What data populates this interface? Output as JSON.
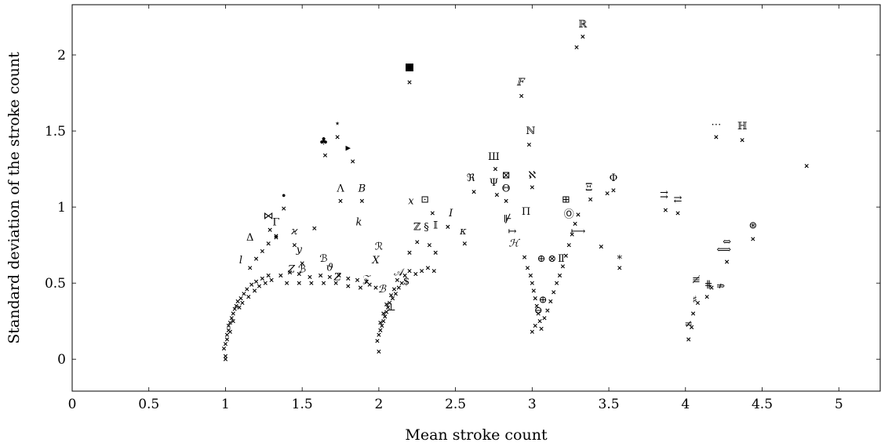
{
  "chart_data": {
    "type": "scatter",
    "xlabel": "Mean stroke count",
    "ylabel": "Standard deviation of the stroke count",
    "xlim": [
      0,
      5.27
    ],
    "ylim": [
      -0.21,
      2.33
    ],
    "xticks": [
      0,
      0.5,
      1,
      1.5,
      2,
      2.5,
      3,
      3.5,
      4,
      4.5,
      5
    ],
    "xtick_labels": [
      "0",
      "0.5",
      "1",
      "1.5",
      "2",
      "2.5",
      "3",
      "3.5",
      "4",
      "4.5",
      "5"
    ],
    "yticks": [
      0,
      0.5,
      1,
      1.5,
      2
    ],
    "ytick_labels": [
      "0",
      "0.5",
      "1",
      "1.5",
      "2"
    ],
    "grid": false,
    "marker": "x",
    "points": [
      [
        1.0,
        0.0
      ],
      [
        1.0,
        0.02
      ],
      [
        0.99,
        0.07
      ],
      [
        1.0,
        0.1
      ],
      [
        1.01,
        0.13
      ],
      [
        1.01,
        0.16
      ],
      [
        1.02,
        0.19
      ],
      [
        1.02,
        0.22
      ],
      [
        1.03,
        0.24
      ],
      [
        1.04,
        0.27
      ],
      [
        1.05,
        0.3
      ],
      [
        1.06,
        0.33
      ],
      [
        1.07,
        0.35
      ],
      [
        1.08,
        0.38
      ],
      [
        1.1,
        0.4
      ],
      [
        1.12,
        0.43
      ],
      [
        1.14,
        0.46
      ],
      [
        1.17,
        0.49
      ],
      [
        1.2,
        0.51
      ],
      [
        1.24,
        0.53
      ],
      [
        1.28,
        0.55
      ],
      [
        1.03,
        0.18
      ],
      [
        1.05,
        0.25
      ],
      [
        1.09,
        0.34
      ],
      [
        1.11,
        0.37
      ],
      [
        1.15,
        0.41
      ],
      [
        1.19,
        0.45
      ],
      [
        1.22,
        0.48
      ],
      [
        1.26,
        0.5
      ],
      [
        1.3,
        0.52
      ],
      [
        1.16,
        0.6
      ],
      [
        1.2,
        0.66
      ],
      [
        1.24,
        0.71
      ],
      [
        1.28,
        0.76
      ],
      [
        1.33,
        0.8
      ],
      [
        1.38,
        0.99
      ],
      [
        1.29,
        0.85
      ],
      [
        1.33,
        0.81
      ],
      [
        1.45,
        0.75
      ],
      [
        1.5,
        0.63
      ],
      [
        1.58,
        0.86
      ],
      [
        1.36,
        0.55
      ],
      [
        1.42,
        0.57
      ],
      [
        1.48,
        0.56
      ],
      [
        1.55,
        0.54
      ],
      [
        1.62,
        0.55
      ],
      [
        1.68,
        0.54
      ],
      [
        1.74,
        0.55
      ],
      [
        1.8,
        0.53
      ],
      [
        1.86,
        0.52
      ],
      [
        1.92,
        0.51
      ],
      [
        1.4,
        0.5
      ],
      [
        1.48,
        0.5
      ],
      [
        1.56,
        0.5
      ],
      [
        1.64,
        0.5
      ],
      [
        1.72,
        0.5
      ],
      [
        1.8,
        0.48
      ],
      [
        1.88,
        0.47
      ],
      [
        1.94,
        0.49
      ],
      [
        1.98,
        0.47
      ],
      [
        1.65,
        1.34
      ],
      [
        1.73,
        1.46
      ],
      [
        1.83,
        1.3
      ],
      [
        1.75,
        1.04
      ],
      [
        1.89,
        1.04
      ],
      [
        2.0,
        0.05
      ],
      [
        1.99,
        0.12
      ],
      [
        2.0,
        0.16
      ],
      [
        2.01,
        0.19
      ],
      [
        2.02,
        0.22
      ],
      [
        2.03,
        0.25
      ],
      [
        2.04,
        0.28
      ],
      [
        2.05,
        0.31
      ],
      [
        2.06,
        0.34
      ],
      [
        2.07,
        0.37
      ],
      [
        2.09,
        0.4
      ],
      [
        2.11,
        0.43
      ],
      [
        2.13,
        0.47
      ],
      [
        2.15,
        0.5
      ],
      [
        2.01,
        0.24
      ],
      [
        2.03,
        0.3
      ],
      [
        2.05,
        0.36
      ],
      [
        2.08,
        0.42
      ],
      [
        2.1,
        0.46
      ],
      [
        2.12,
        0.52
      ],
      [
        2.17,
        0.55
      ],
      [
        2.2,
        0.58
      ],
      [
        2.24,
        0.56
      ],
      [
        2.28,
        0.58
      ],
      [
        2.32,
        0.6
      ],
      [
        2.36,
        0.58
      ],
      [
        2.2,
        0.7
      ],
      [
        2.25,
        0.77
      ],
      [
        2.33,
        0.75
      ],
      [
        2.37,
        0.7
      ],
      [
        2.2,
        1.82
      ],
      [
        2.35,
        0.96
      ],
      [
        2.45,
        0.87
      ],
      [
        2.56,
        0.76
      ],
      [
        2.62,
        1.1
      ],
      [
        2.76,
        1.25
      ],
      [
        2.77,
        1.08
      ],
      [
        2.83,
        1.04
      ],
      [
        2.93,
        1.73
      ],
      [
        2.98,
        1.41
      ],
      [
        3.0,
        1.13
      ],
      [
        3.29,
        2.05
      ],
      [
        3.33,
        2.12
      ],
      [
        2.95,
        0.67
      ],
      [
        2.97,
        0.6
      ],
      [
        2.99,
        0.55
      ],
      [
        3.0,
        0.5
      ],
      [
        3.01,
        0.45
      ],
      [
        3.02,
        0.4
      ],
      [
        3.03,
        0.35
      ],
      [
        3.04,
        0.3
      ],
      [
        3.05,
        0.25
      ],
      [
        3.06,
        0.2
      ],
      [
        3.0,
        0.18
      ],
      [
        3.02,
        0.22
      ],
      [
        3.08,
        0.27
      ],
      [
        3.1,
        0.32
      ],
      [
        3.12,
        0.38
      ],
      [
        3.14,
        0.44
      ],
      [
        3.16,
        0.5
      ],
      [
        3.18,
        0.55
      ],
      [
        3.2,
        0.61
      ],
      [
        3.22,
        0.68
      ],
      [
        3.24,
        0.75
      ],
      [
        3.26,
        0.82
      ],
      [
        3.28,
        0.89
      ],
      [
        3.3,
        0.95
      ],
      [
        3.38,
        1.05
      ],
      [
        3.49,
        1.09
      ],
      [
        3.53,
        1.11
      ],
      [
        3.45,
        0.74
      ],
      [
        3.57,
        0.6
      ],
      [
        3.87,
        0.98
      ],
      [
        3.95,
        0.96
      ],
      [
        4.02,
        0.13
      ],
      [
        4.04,
        0.21
      ],
      [
        4.05,
        0.3
      ],
      [
        4.08,
        0.37
      ],
      [
        4.14,
        0.41
      ],
      [
        4.17,
        0.47
      ],
      [
        4.2,
        1.46
      ],
      [
        4.37,
        1.44
      ],
      [
        4.27,
        0.64
      ],
      [
        4.44,
        0.79
      ],
      [
        4.79,
        1.27
      ]
    ],
    "symbols": [
      {
        "s": "■",
        "x": 2.2,
        "y": 1.9,
        "size": 20
      },
      {
        "s": "♣",
        "x": 1.64,
        "y": 1.41,
        "size": 16
      },
      {
        "s": "⋆",
        "x": 1.73,
        "y": 1.53,
        "size": 15
      },
      {
        "s": "▸",
        "x": 1.8,
        "y": 1.37,
        "size": 22
      },
      {
        "s": "•",
        "x": 1.38,
        "y": 1.05,
        "size": 17
      },
      {
        "s": "Λ",
        "x": 1.75,
        "y": 1.1,
        "size": 13
      },
      {
        "s": "B",
        "x": 1.89,
        "y": 1.1,
        "size": 13,
        "italic": true
      },
      {
        "s": "⋈",
        "x": 1.28,
        "y": 0.92,
        "size": 15
      },
      {
        "s": "Γ",
        "x": 1.33,
        "y": 0.88,
        "size": 13
      },
      {
        "s": "ϰ",
        "x": 1.45,
        "y": 0.82,
        "size": 13,
        "italic": true
      },
      {
        "s": "y",
        "x": 1.48,
        "y": 0.7,
        "size": 13,
        "italic": true
      },
      {
        "s": "Δ",
        "x": 1.16,
        "y": 0.78,
        "size": 12
      },
      {
        "s": "l",
        "x": 1.1,
        "y": 0.63,
        "size": 13,
        "italic": true
      },
      {
        "s": "Z",
        "x": 1.43,
        "y": 0.57,
        "size": 13,
        "italic": true
      },
      {
        "s": "ℬ",
        "x": 1.5,
        "y": 0.57,
        "size": 13
      },
      {
        "s": "ϑ",
        "x": 1.68,
        "y": 0.58,
        "size": 13,
        "italic": true
      },
      {
        "s": "ℬ",
        "x": 1.64,
        "y": 0.64,
        "size": 13
      },
      {
        "s": "Z",
        "x": 1.73,
        "y": 0.52,
        "size": 13,
        "italic": true
      },
      {
        "s": "𝒵",
        "x": 1.92,
        "y": 0.51,
        "size": 13
      },
      {
        "s": "k",
        "x": 1.87,
        "y": 0.88,
        "size": 13,
        "italic": true
      },
      {
        "s": "x",
        "x": 2.21,
        "y": 1.02,
        "size": 13,
        "italic": true
      },
      {
        "s": "⊡",
        "x": 2.3,
        "y": 1.03,
        "size": 14
      },
      {
        "s": "ℤ",
        "x": 2.25,
        "y": 0.85,
        "size": 13
      },
      {
        "s": "§",
        "x": 2.31,
        "y": 0.85,
        "size": 13
      },
      {
        "s": "𝕀",
        "x": 2.37,
        "y": 0.86,
        "size": 13
      },
      {
        "s": "I",
        "x": 2.47,
        "y": 0.94,
        "size": 13,
        "italic": true
      },
      {
        "s": "κ",
        "x": 2.55,
        "y": 0.82,
        "size": 13,
        "italic": true
      },
      {
        "s": "ℛ",
        "x": 2.0,
        "y": 0.72,
        "size": 13
      },
      {
        "s": "X",
        "x": 1.98,
        "y": 0.63,
        "size": 13,
        "italic": true
      },
      {
        "s": "𝒜",
        "x": 2.13,
        "y": 0.55,
        "size": 13
      },
      {
        "s": "$",
        "x": 2.18,
        "y": 0.49,
        "size": 13
      },
      {
        "s": "ℬ",
        "x": 2.02,
        "y": 0.44,
        "size": 13,
        "italic": true
      },
      {
        "s": "⊥",
        "x": 2.08,
        "y": 0.32,
        "size": 13
      },
      {
        "s": "ℜ",
        "x": 2.6,
        "y": 1.17,
        "size": 13
      },
      {
        "s": "Ш",
        "x": 2.75,
        "y": 1.31,
        "size": 11
      },
      {
        "s": "Ψ",
        "x": 2.75,
        "y": 1.14,
        "size": 13
      },
      {
        "s": "⊠",
        "x": 2.83,
        "y": 1.19,
        "size": 15
      },
      {
        "s": "Θ",
        "x": 2.83,
        "y": 1.1,
        "size": 13
      },
      {
        "s": "ℵ",
        "x": 3.0,
        "y": 1.19,
        "size": 13
      },
      {
        "s": "𝔽",
        "x": 2.92,
        "y": 1.8,
        "size": 13,
        "italic": true
      },
      {
        "s": "ℕ",
        "x": 2.99,
        "y": 1.48,
        "size": 12
      },
      {
        "s": "ℝ",
        "x": 3.33,
        "y": 2.18,
        "size": 11
      },
      {
        "s": "Π",
        "x": 2.96,
        "y": 0.95,
        "size": 15
      },
      {
        "s": "⊮",
        "x": 2.84,
        "y": 0.9,
        "size": 13
      },
      {
        "s": "↦",
        "x": 2.87,
        "y": 0.82,
        "size": 13
      },
      {
        "s": "ℋ",
        "x": 2.88,
        "y": 0.74,
        "size": 13,
        "italic": true
      },
      {
        "s": "⊞",
        "x": 3.22,
        "y": 1.03,
        "size": 14
      },
      {
        "s": "Ξ",
        "x": 3.37,
        "y": 1.11,
        "size": 12
      },
      {
        "s": "Φ",
        "x": 3.53,
        "y": 1.17,
        "size": 12
      },
      {
        "s": "Ⓞ",
        "x": 3.24,
        "y": 0.93,
        "size": 12
      },
      {
        "s": "⟼",
        "x": 3.3,
        "y": 0.82,
        "size": 13
      },
      {
        "s": "⊕",
        "x": 3.06,
        "y": 0.64,
        "size": 13
      },
      {
        "s": "⊗",
        "x": 3.13,
        "y": 0.64,
        "size": 13
      },
      {
        "s": "Ⅱ",
        "x": 3.19,
        "y": 0.64,
        "size": 13
      },
      {
        "s": "⊕",
        "x": 3.07,
        "y": 0.37,
        "size": 13
      },
      {
        "s": "⊖",
        "x": 3.04,
        "y": 0.3,
        "size": 13
      },
      {
        "s": "∗",
        "x": 3.57,
        "y": 0.65,
        "size": 14
      },
      {
        "s": "⇉",
        "x": 3.86,
        "y": 1.06,
        "size": 14
      },
      {
        "s": "⇄",
        "x": 3.95,
        "y": 1.03,
        "size": 14
      },
      {
        "s": "ℍ",
        "x": 4.37,
        "y": 1.51,
        "size": 11
      },
      {
        "s": "⋯",
        "x": 4.2,
        "y": 1.52,
        "size": 13
      },
      {
        "s": "⊛",
        "x": 4.44,
        "y": 0.86,
        "size": 13
      },
      {
        "s": "⇔",
        "x": 4.27,
        "y": 0.75,
        "size": 14
      },
      {
        "s": "⟺",
        "x": 4.25,
        "y": 0.7,
        "size": 15
      },
      {
        "s": "≢",
        "x": 4.07,
        "y": 0.5,
        "size": 13
      },
      {
        "s": "⋕",
        "x": 4.15,
        "y": 0.47,
        "size": 13
      },
      {
        "s": "⇏",
        "x": 4.23,
        "y": 0.46,
        "size": 13
      },
      {
        "s": "♯",
        "x": 4.06,
        "y": 0.37,
        "size": 12
      },
      {
        "s": "≠",
        "x": 4.02,
        "y": 0.21,
        "size": 14
      }
    ]
  }
}
